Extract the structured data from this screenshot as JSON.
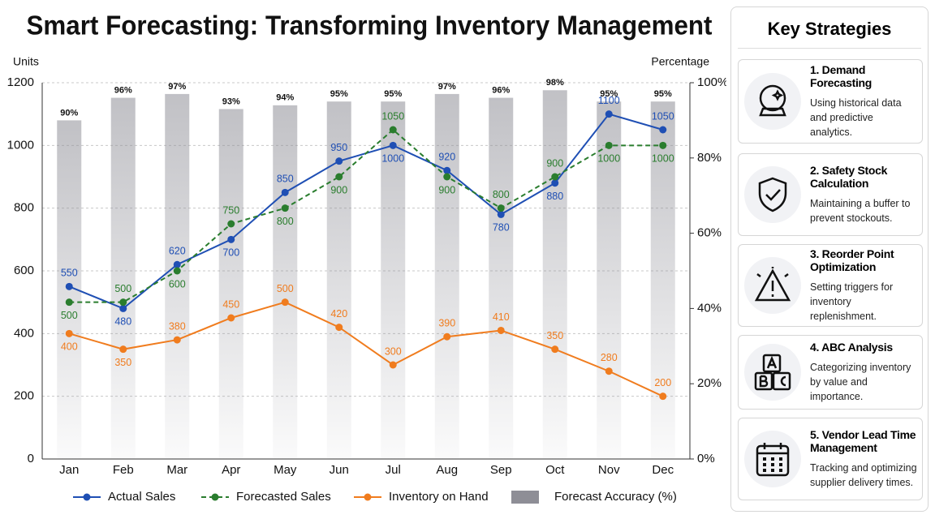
{
  "chart_data": {
    "type": "combo",
    "title": "Smart Forecasting: Transforming Inventory Management",
    "y_label": "Units",
    "y2_label": "Percentage",
    "categories": [
      "Jan",
      "Feb",
      "Mar",
      "Apr",
      "May",
      "Jun",
      "Jul",
      "Aug",
      "Sep",
      "Oct",
      "Nov",
      "Dec"
    ],
    "ylim": [
      0,
      1200
    ],
    "yticks": [
      0,
      200,
      400,
      600,
      800,
      1000,
      1200
    ],
    "y2lim": [
      0,
      100
    ],
    "y2ticks": [
      {
        "value": 0,
        "label": "0%"
      },
      {
        "value": 20,
        "label": "20%"
      },
      {
        "value": 40,
        "label": "40%"
      },
      {
        "value": 60,
        "label": "60%"
      },
      {
        "value": 80,
        "label": "80%"
      },
      {
        "value": 100,
        "label": "100%"
      }
    ],
    "grid": true,
    "legend": "bottom",
    "series": [
      {
        "name": "Forecast Accuracy (%)",
        "type": "bar",
        "axis": "y2",
        "color": "#8e8e96",
        "values": [
          90,
          96,
          97,
          93,
          94,
          95,
          95,
          97,
          96,
          98,
          95,
          95
        ],
        "value_labels": [
          "90%",
          "96%",
          "97%",
          "93%",
          "94%",
          "95%",
          "95%",
          "97%",
          "96%",
          "98%",
          "95%",
          "95%"
        ]
      },
      {
        "name": "Actual Sales",
        "type": "line",
        "color": "#1f4fb4",
        "values": [
          550,
          480,
          620,
          700,
          850,
          950,
          1000,
          920,
          780,
          880,
          1100,
          1050
        ]
      },
      {
        "name": "Forecasted Sales",
        "type": "line",
        "dashed": true,
        "color": "#2a7d2e",
        "values": [
          500,
          500,
          600,
          750,
          800,
          900,
          1050,
          900,
          800,
          900,
          1000,
          1000
        ]
      },
      {
        "name": "Inventory on Hand",
        "type": "line",
        "color": "#f07c1e",
        "values": [
          400,
          350,
          380,
          450,
          500,
          420,
          300,
          390,
          410,
          350,
          280,
          200
        ]
      }
    ]
  },
  "panel": {
    "title": "Key Strategies",
    "items": [
      {
        "title": "1. Demand Forecasting",
        "text": "Using historical data and predictive analytics."
      },
      {
        "title": "2. Safety Stock Calculation",
        "text": "Maintaining a buffer to prevent stockouts."
      },
      {
        "title": "3. Reorder Point Optimization",
        "text": "Setting triggers for inventory replenishment."
      },
      {
        "title": "4. ABC Analysis",
        "text": "Categorizing inventory by value and importance."
      },
      {
        "title": "5. Vendor Lead Time Management",
        "text": "Tracking and optimizing supplier delivery times."
      }
    ]
  }
}
